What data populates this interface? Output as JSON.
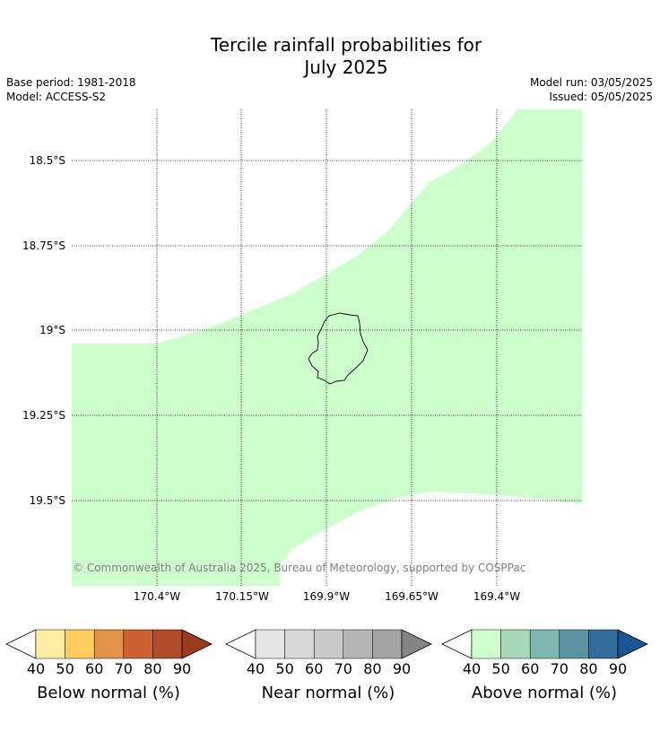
{
  "title_line1": "Tercile rainfall probabilities for",
  "title_line2": "July 2025",
  "base_period": "Base period: 1981-2018",
  "model": "Model: ACCESS-S2",
  "model_run": "Model run: 03/05/2025",
  "issued": "Issued: 05/05/2025",
  "lat_labels": [
    "18.5°S",
    "18.75°S",
    "19°S",
    "19.25°S",
    "19.5°S"
  ],
  "lon_labels": [
    "170.4°W",
    "170.15°W",
    "169.9°W",
    "169.65°W",
    "169.4°W"
  ],
  "copyright": "© Commonwealth of Australia 2025, Bureau of Meteorology, supported by COSPPac",
  "legend": [
    {
      "title": "Below normal (%)",
      "ticks": [
        "40",
        "50",
        "60",
        "70",
        "80",
        "90"
      ],
      "colors": [
        "#ffeda0",
        "#fecc5c",
        "#e1944a",
        "#cd6032",
        "#b14a28",
        "#9a3a20"
      ]
    },
    {
      "title": "Near normal (%)",
      "ticks": [
        "40",
        "50",
        "60",
        "70",
        "80",
        "90"
      ],
      "colors": [
        "#e6e6e6",
        "#d9d9d9",
        "#c9c9c9",
        "#b5b5b5",
        "#a3a3a3",
        "#858585"
      ]
    },
    {
      "title": "Above normal (%)",
      "ticks": [
        "40",
        "50",
        "60",
        "70",
        "80",
        "90"
      ],
      "colors": [
        "#ccffcc",
        "#a8d8b9",
        "#80b6b0",
        "#5b93a0",
        "#336b9a",
        "#1c5593"
      ]
    }
  ],
  "shading_color": "#ccffcc"
}
